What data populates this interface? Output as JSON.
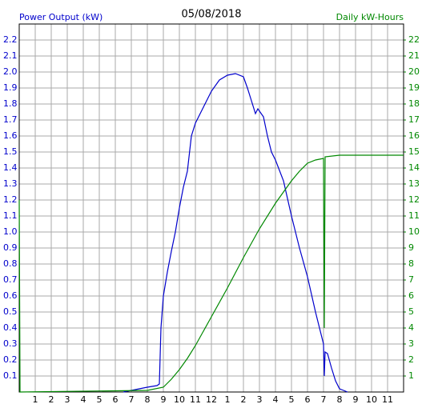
{
  "chart_data": {
    "type": "line",
    "title": "05/08/2018",
    "y_label": "Power Output (kW)",
    "y2_label": "Daily kW-Hours",
    "grid": true,
    "xlim": [
      0,
      24
    ],
    "xticks": [
      1,
      2,
      3,
      4,
      5,
      6,
      7,
      8,
      9,
      10,
      11,
      12,
      {
        "value": 13,
        "label": "1"
      },
      {
        "value": 14,
        "label": "2"
      },
      {
        "value": 15,
        "label": "3"
      },
      {
        "value": 16,
        "label": "4"
      },
      {
        "value": 17,
        "label": "5"
      },
      {
        "value": 18,
        "label": "6"
      },
      {
        "value": 19,
        "label": "7"
      },
      {
        "value": 20,
        "label": "8"
      },
      {
        "value": 21,
        "label": "9"
      },
      {
        "value": 22,
        "label": "10"
      },
      {
        "value": 23,
        "label": "11"
      }
    ],
    "ylim": [
      0,
      2.3
    ],
    "yticks": [
      0.1,
      0.2,
      0.3,
      0.4,
      0.5,
      0.6,
      0.7,
      0.8,
      0.9,
      {
        "value": 1,
        "label": "1.0"
      },
      1.1,
      1.2,
      1.3,
      1.4,
      1.5,
      1.6,
      1.7,
      1.8,
      1.9,
      {
        "value": 2,
        "label": "2.0"
      },
      2.1,
      2.2
    ],
    "y2lim": [
      0,
      23
    ],
    "y2ticks": [
      1,
      2,
      3,
      4,
      5,
      6,
      7,
      8,
      9,
      10,
      11,
      12,
      13,
      14,
      15,
      16,
      17,
      18,
      19,
      20,
      21,
      22
    ],
    "series": [
      {
        "name": "Power Output (kW)",
        "color": "#0000cc",
        "x": [
          6.5,
          7,
          7.5,
          8,
          8.6,
          8.75,
          8.85,
          9,
          9.25,
          9.5,
          9.75,
          10,
          10.25,
          10.5,
          10.75,
          11,
          11.5,
          12,
          12.5,
          13,
          13.5,
          14,
          14.25,
          14.5,
          14.75,
          14.9,
          15.25,
          15.5,
          15.75,
          16,
          16.5,
          17,
          17.5,
          18,
          18.5,
          19,
          19.05,
          19.1,
          19.25,
          19.5,
          19.75,
          20,
          20.25,
          20.5
        ],
        "values": [
          0,
          0.01,
          0.02,
          0.03,
          0.04,
          0.05,
          0.4,
          0.6,
          0.75,
          0.88,
          1.0,
          1.15,
          1.28,
          1.38,
          1.6,
          1.68,
          1.78,
          1.88,
          1.95,
          1.98,
          1.99,
          1.97,
          1.9,
          1.82,
          1.74,
          1.77,
          1.72,
          1.6,
          1.5,
          1.45,
          1.32,
          1.1,
          0.9,
          0.72,
          0.5,
          0.3,
          0.1,
          0.25,
          0.24,
          0.15,
          0.07,
          0.02,
          0.01,
          0
        ]
      },
      {
        "name": "Daily kW-Hours",
        "color": "#008800",
        "axis": "y2",
        "x": [
          0,
          0.05,
          8,
          9,
          9.5,
          10,
          10.5,
          11,
          12,
          13,
          14,
          15,
          16,
          17,
          17.5,
          18,
          18.5,
          19,
          19.05,
          19.1,
          20,
          24
        ],
        "values": [
          12,
          0,
          0.1,
          0.3,
          0.8,
          1.4,
          2.1,
          2.9,
          4.7,
          6.5,
          8.4,
          10.2,
          11.8,
          13.2,
          13.8,
          14.3,
          14.5,
          14.6,
          4,
          14.7,
          14.8,
          14.8
        ]
      }
    ]
  }
}
